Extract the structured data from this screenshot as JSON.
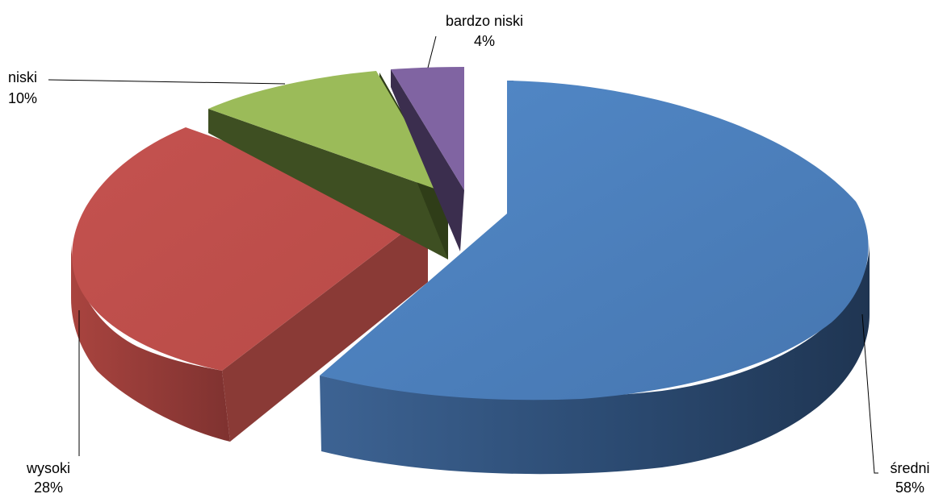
{
  "chart_data": {
    "type": "pie",
    "title": "",
    "series": [
      {
        "values": [
          58,
          28,
          10,
          4
        ],
        "categories": [
          "średni",
          "wysoki",
          "niski",
          "bardzo niski"
        ]
      }
    ],
    "labels": [
      {
        "name": "średni",
        "value": "58%"
      },
      {
        "name": "wysoki",
        "value": "28%"
      },
      {
        "name": "niski",
        "value": "10%"
      },
      {
        "name": "bardzo niski",
        "value": "4%"
      }
    ],
    "colors": {
      "średni": "#4F81BD",
      "wysoki": "#C0504D",
      "niski": "#9BBB59",
      "bardzo niski": "#8064A2"
    },
    "style": "3d-exploded",
    "legend": "none"
  }
}
